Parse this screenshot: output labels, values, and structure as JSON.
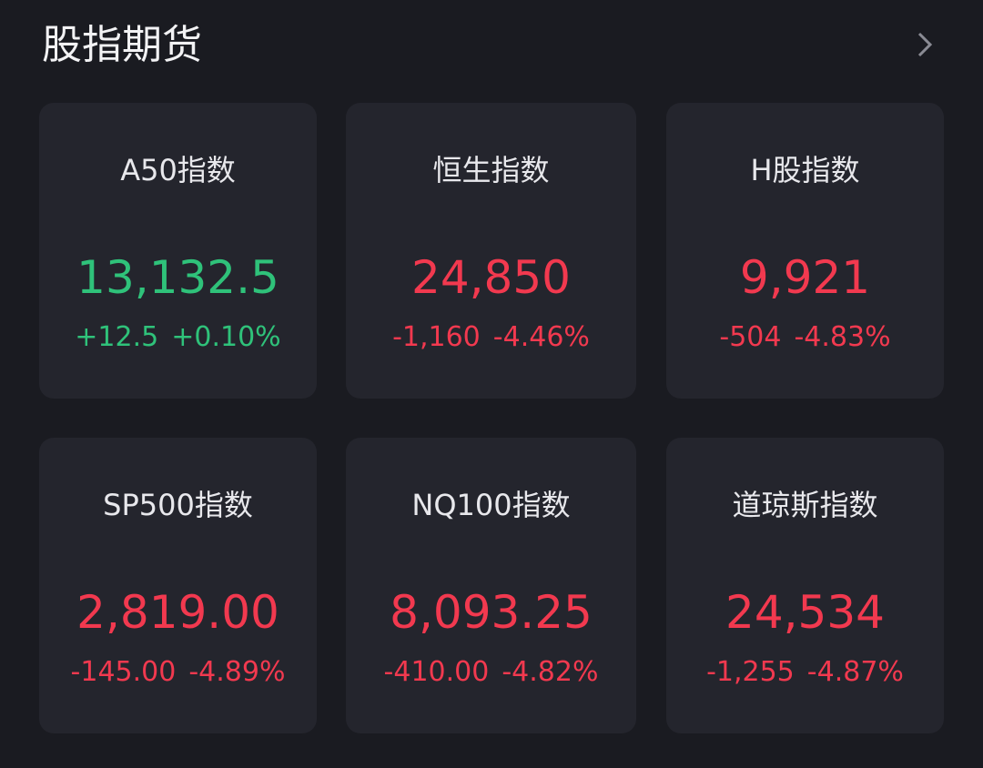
{
  "header": {
    "title": "股指期货"
  },
  "cards": [
    {
      "name": "A50指数",
      "price": "13,132.5",
      "change": "+12.5",
      "percent": "+0.10%",
      "color": "#2fc27a"
    },
    {
      "name": "恒生指数",
      "price": "24,850",
      "change": "-1,160",
      "percent": "-4.46%",
      "color": "#f2394f"
    },
    {
      "name": "H股指数",
      "price": "9,921",
      "change": "-504",
      "percent": "-4.83%",
      "color": "#f2394f"
    },
    {
      "name": "SP500指数",
      "price": "2,819.00",
      "change": "-145.00",
      "percent": "-4.89%",
      "color": "#f2394f"
    },
    {
      "name": "NQ100指数",
      "price": "8,093.25",
      "change": "-410.00",
      "percent": "-4.82%",
      "color": "#f2394f"
    },
    {
      "name": "道琼斯指数",
      "price": "24,534",
      "change": "-1,255",
      "percent": "-4.87%",
      "color": "#f2394f"
    }
  ]
}
